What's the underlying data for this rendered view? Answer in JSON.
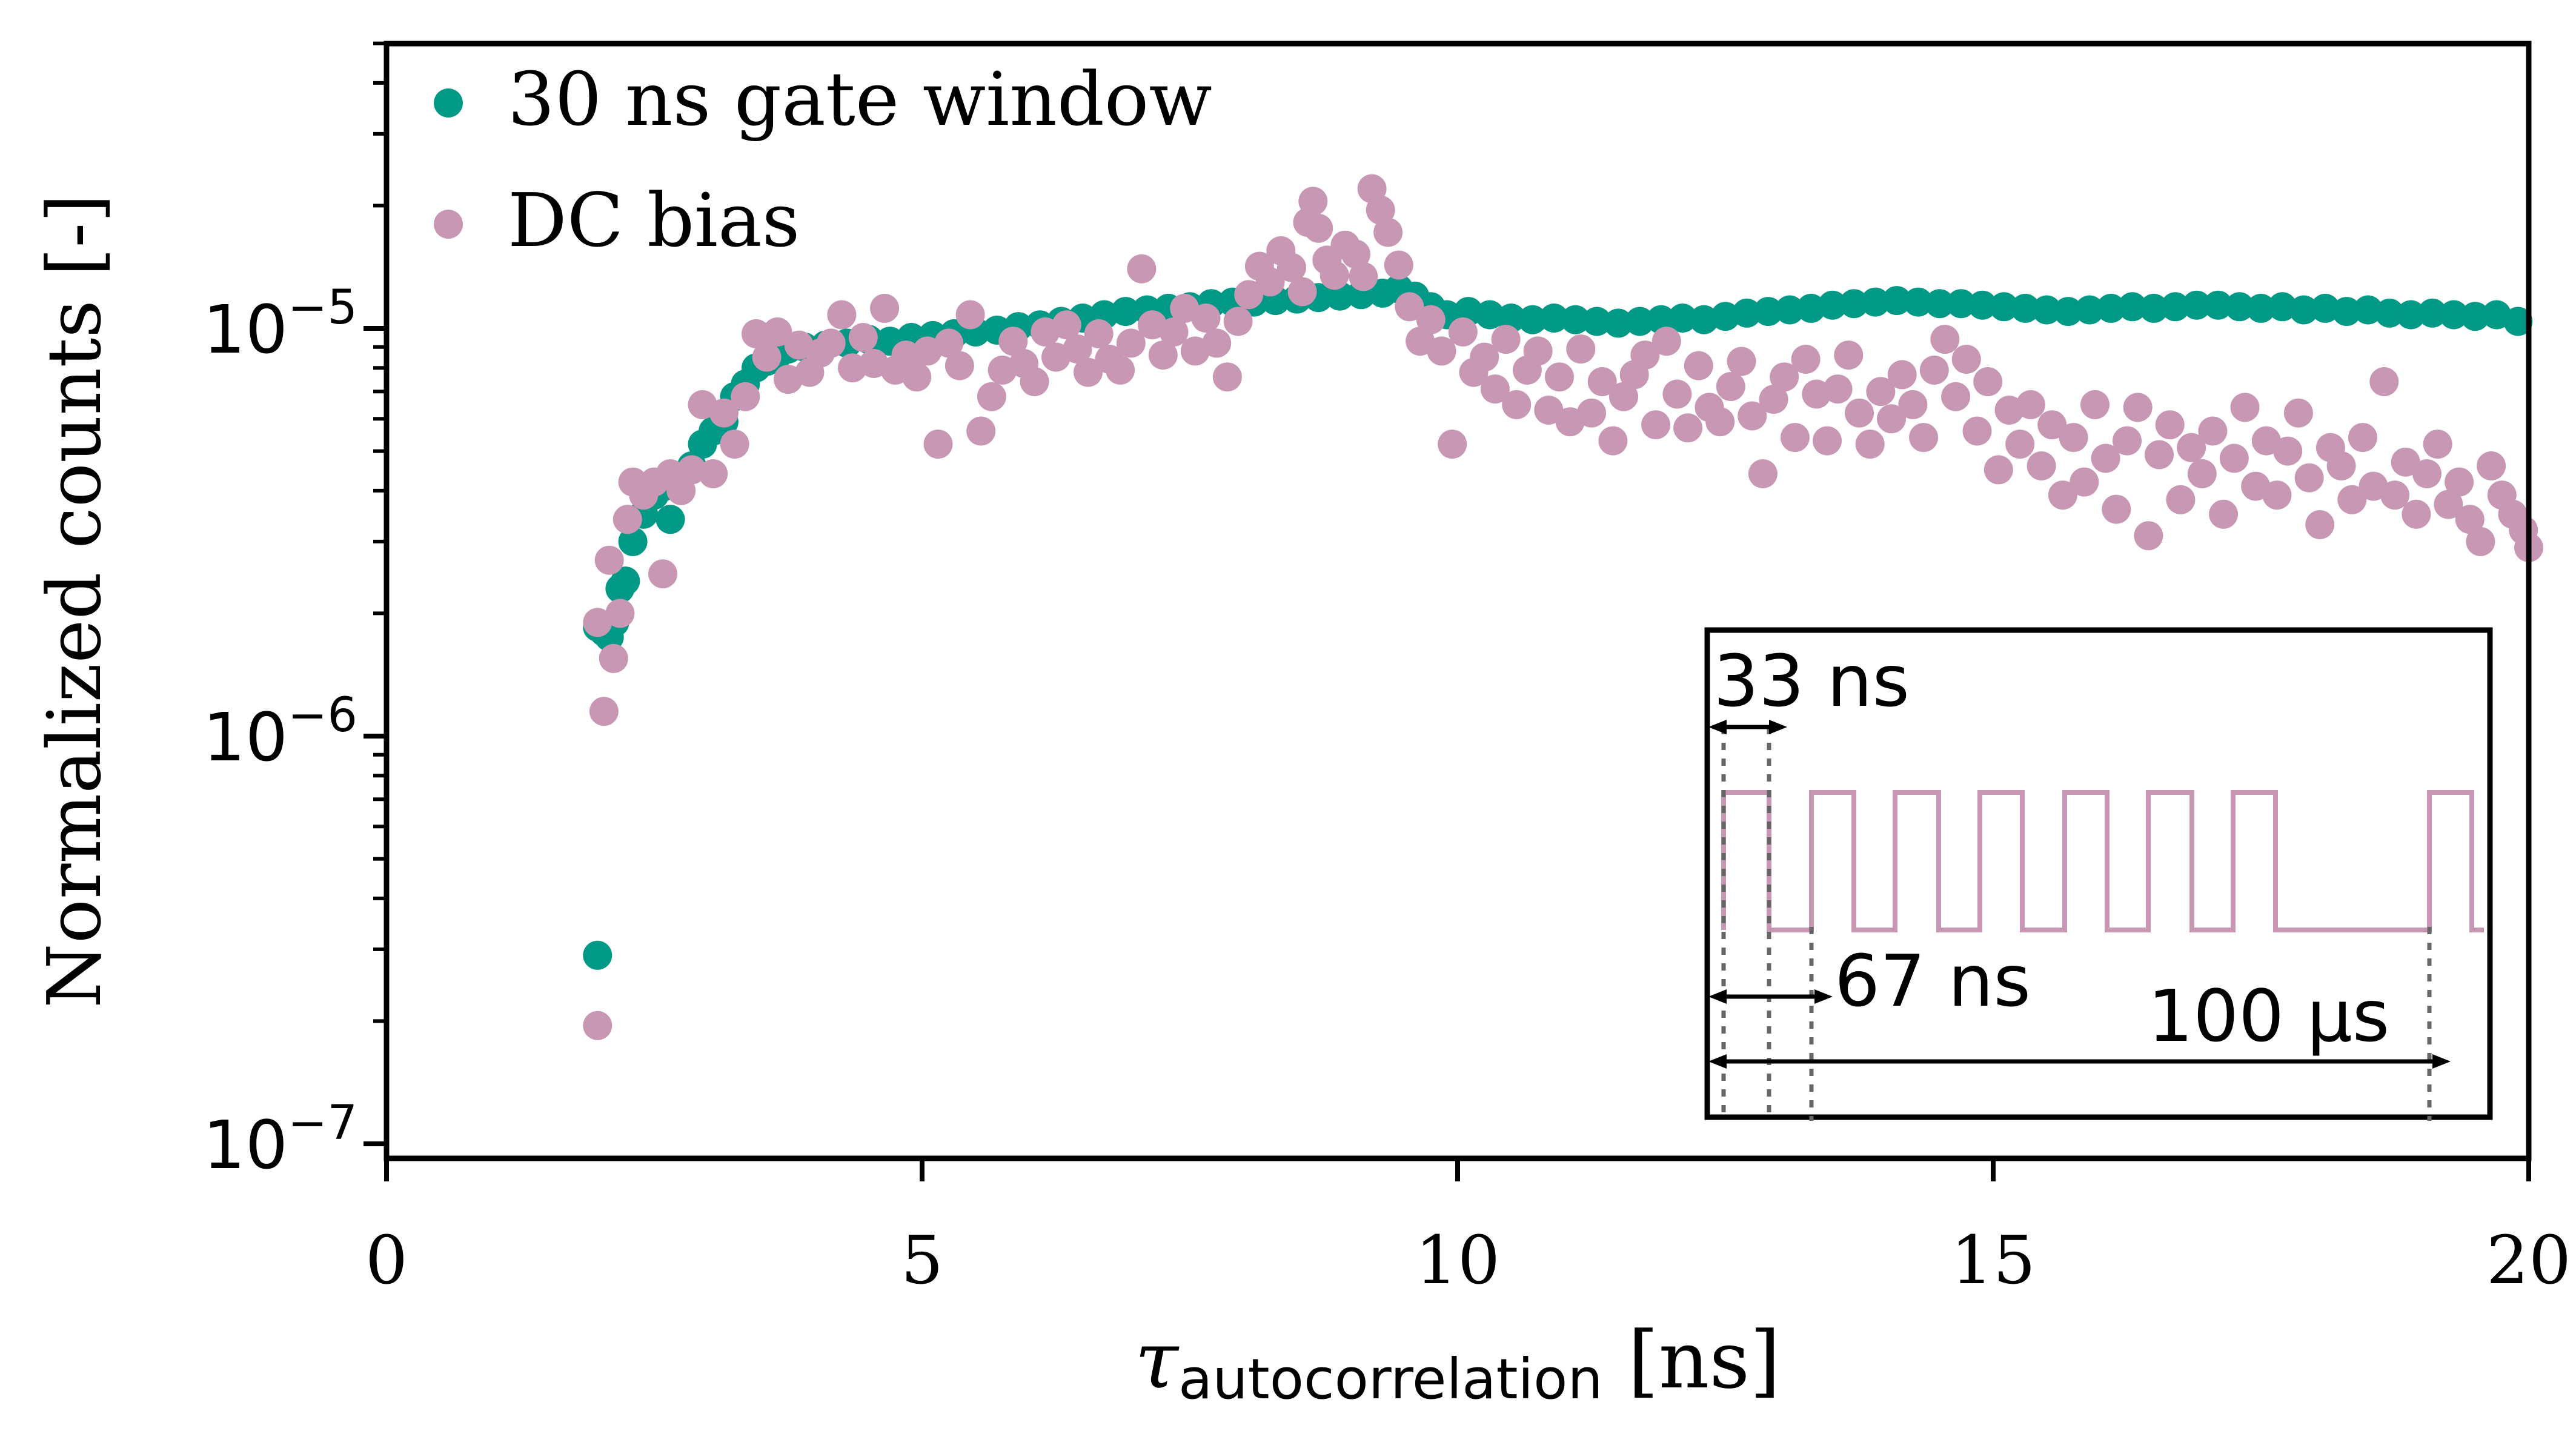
{
  "chart_data": {
    "type": "scatter",
    "title": "",
    "xlabel": {
      "symbol": "τ",
      "subscript": "autocorrelation",
      "unit": " [ns]"
    },
    "ylabel": "Normalized counts [-]",
    "xlim": [
      0,
      20
    ],
    "ylim": [
      1e-07,
      5e-05
    ],
    "yscale": "log",
    "xticks": [
      "0",
      "5",
      "10",
      "15",
      "20"
    ],
    "yticks": [
      {
        "base": "10",
        "exp": "−7",
        "value": 1e-07
      },
      {
        "base": "10",
        "exp": "−6",
        "value": 1e-06
      },
      {
        "base": "10",
        "exp": "−5",
        "value": 1e-05
      }
    ],
    "legend_position": "top-left",
    "series": [
      {
        "name": "30 ns gate window",
        "color": "#009985",
        "points": [
          [
            1.97,
            2.9e-07
          ],
          [
            1.97,
            1.85e-06
          ],
          [
            2.03,
            1.8e-06
          ],
          [
            2.08,
            1.75e-06
          ],
          [
            2.13,
            1.9e-06
          ],
          [
            2.18,
            2.3e-06
          ],
          [
            2.23,
            2.4e-06
          ],
          [
            2.3,
            3e-06
          ],
          [
            2.4,
            3.5e-06
          ],
          [
            2.5,
            3.9e-06
          ],
          [
            2.6,
            4.1e-06
          ],
          [
            2.65,
            3.4e-06
          ],
          [
            2.75,
            4.3e-06
          ],
          [
            2.85,
            4.6e-06
          ],
          [
            2.95,
            5.2e-06
          ],
          [
            3.05,
            5.6e-06
          ],
          [
            3.15,
            5.9e-06
          ],
          [
            3.25,
            6.8e-06
          ],
          [
            3.35,
            7.3e-06
          ],
          [
            3.45,
            8e-06
          ],
          [
            3.55,
            8.3e-06
          ],
          [
            3.65,
            8.6e-06
          ],
          [
            3.75,
            8.9e-06
          ],
          [
            3.9,
            9e-06
          ],
          [
            4.1,
            9.1e-06
          ],
          [
            4.3,
            9.2e-06
          ],
          [
            4.5,
            9.4e-06
          ],
          [
            4.7,
            9.3e-06
          ],
          [
            4.9,
            9.5e-06
          ],
          [
            5.1,
            9.6e-06
          ],
          [
            5.3,
            9.7e-06
          ],
          [
            5.5,
            9.8e-06
          ],
          [
            5.7,
            9.9e-06
          ],
          [
            5.9,
            1.01e-05
          ],
          [
            6.1,
            1.02e-05
          ],
          [
            6.3,
            1.04e-05
          ],
          [
            6.5,
            1.06e-05
          ],
          [
            6.7,
            1.08e-05
          ],
          [
            6.9,
            1.1e-05
          ],
          [
            7.1,
            1.11e-05
          ],
          [
            7.3,
            1.12e-05
          ],
          [
            7.5,
            1.13e-05
          ],
          [
            7.7,
            1.15e-05
          ],
          [
            7.9,
            1.16e-05
          ],
          [
            8.1,
            1.16e-05
          ],
          [
            8.3,
            1.17e-05
          ],
          [
            8.5,
            1.18e-05
          ],
          [
            8.7,
            1.19e-05
          ],
          [
            8.9,
            1.2e-05
          ],
          [
            9.1,
            1.21e-05
          ],
          [
            9.3,
            1.22e-05
          ],
          [
            9.45,
            1.25e-05
          ],
          [
            9.6,
            1.2e-05
          ],
          [
            9.75,
            1.13e-05
          ],
          [
            9.9,
            1.08e-05
          ],
          [
            10.1,
            1.1e-05
          ],
          [
            10.3,
            1.08e-05
          ],
          [
            10.5,
            1.06e-05
          ],
          [
            10.7,
            1.05e-05
          ],
          [
            10.9,
            1.06e-05
          ],
          [
            11.1,
            1.05e-05
          ],
          [
            11.3,
            1.04e-05
          ],
          [
            11.5,
            1.03e-05
          ],
          [
            11.7,
            1.04e-05
          ],
          [
            11.9,
            1.05e-05
          ],
          [
            12.1,
            1.06e-05
          ],
          [
            12.3,
            1.05e-05
          ],
          [
            12.5,
            1.07e-05
          ],
          [
            12.7,
            1.09e-05
          ],
          [
            12.9,
            1.1e-05
          ],
          [
            13.1,
            1.11e-05
          ],
          [
            13.3,
            1.12e-05
          ],
          [
            13.5,
            1.14e-05
          ],
          [
            13.7,
            1.15e-05
          ],
          [
            13.9,
            1.16e-05
          ],
          [
            14.1,
            1.17e-05
          ],
          [
            14.3,
            1.16e-05
          ],
          [
            14.5,
            1.15e-05
          ],
          [
            14.7,
            1.15e-05
          ],
          [
            14.9,
            1.14e-05
          ],
          [
            15.1,
            1.13e-05
          ],
          [
            15.3,
            1.12e-05
          ],
          [
            15.5,
            1.11e-05
          ],
          [
            15.7,
            1.1e-05
          ],
          [
            15.9,
            1.11e-05
          ],
          [
            16.1,
            1.12e-05
          ],
          [
            16.3,
            1.13e-05
          ],
          [
            16.5,
            1.12e-05
          ],
          [
            16.7,
            1.13e-05
          ],
          [
            16.9,
            1.14e-05
          ],
          [
            17.1,
            1.14e-05
          ],
          [
            17.3,
            1.13e-05
          ],
          [
            17.5,
            1.12e-05
          ],
          [
            17.7,
            1.13e-05
          ],
          [
            17.9,
            1.11e-05
          ],
          [
            18.1,
            1.12e-05
          ],
          [
            18.3,
            1.1e-05
          ],
          [
            18.5,
            1.11e-05
          ],
          [
            18.7,
            1.09e-05
          ],
          [
            18.9,
            1.08e-05
          ],
          [
            19.1,
            1.09e-05
          ],
          [
            19.3,
            1.08e-05
          ],
          [
            19.5,
            1.07e-05
          ],
          [
            19.7,
            1.08e-05
          ],
          [
            19.9,
            1.04e-05
          ]
        ]
      },
      {
        "name": "DC bias",
        "color": "#c897b3",
        "points": [
          [
            1.97,
            1.95e-07
          ],
          [
            1.97,
            1.9e-06
          ],
          [
            2.03,
            1.15e-06
          ],
          [
            2.08,
            2.7e-06
          ],
          [
            2.12,
            1.55e-06
          ],
          [
            2.18,
            2e-06
          ],
          [
            2.25,
            3.4e-06
          ],
          [
            2.3,
            4.2e-06
          ],
          [
            2.4,
            3.9e-06
          ],
          [
            2.5,
            4.2e-06
          ],
          [
            2.58,
            2.5e-06
          ],
          [
            2.65,
            4.4e-06
          ],
          [
            2.75,
            4e-06
          ],
          [
            2.85,
            4.5e-06
          ],
          [
            2.95,
            6.5e-06
          ],
          [
            3.05,
            4.4e-06
          ],
          [
            3.15,
            6.2e-06
          ],
          [
            3.25,
            5.2e-06
          ],
          [
            3.35,
            6.8e-06
          ],
          [
            3.45,
            9.7e-06
          ],
          [
            3.55,
            8.5e-06
          ],
          [
            3.65,
            9.8e-06
          ],
          [
            3.75,
            7.5e-06
          ],
          [
            3.85,
            9.1e-06
          ],
          [
            3.95,
            7.8e-06
          ],
          [
            4.05,
            8.7e-06
          ],
          [
            4.15,
            9.2e-06
          ],
          [
            4.25,
            1.08e-05
          ],
          [
            4.35,
            8e-06
          ],
          [
            4.45,
            9.5e-06
          ],
          [
            4.55,
            8.2e-06
          ],
          [
            4.65,
            1.12e-05
          ],
          [
            4.75,
            7.9e-06
          ],
          [
            4.85,
            8.6e-06
          ],
          [
            4.95,
            7.6e-06
          ],
          [
            5.05,
            8.8e-06
          ],
          [
            5.15,
            5.2e-06
          ],
          [
            5.25,
            9.2e-06
          ],
          [
            5.35,
            8.1e-06
          ],
          [
            5.45,
            1.08e-05
          ],
          [
            5.55,
            5.6e-06
          ],
          [
            5.65,
            6.8e-06
          ],
          [
            5.75,
            7.9e-06
          ],
          [
            5.85,
            9.3e-06
          ],
          [
            5.95,
            8.2e-06
          ],
          [
            6.05,
            7.4e-06
          ],
          [
            6.15,
            9.8e-06
          ],
          [
            6.25,
            8.5e-06
          ],
          [
            6.35,
            1.02e-05
          ],
          [
            6.45,
            8.9e-06
          ],
          [
            6.55,
            7.8e-06
          ],
          [
            6.65,
            9.7e-06
          ],
          [
            6.75,
            8.4e-06
          ],
          [
            6.85,
            7.9e-06
          ],
          [
            6.95,
            9.2e-06
          ],
          [
            7.05,
            1.4e-05
          ],
          [
            7.15,
            1.02e-05
          ],
          [
            7.25,
            8.6e-06
          ],
          [
            7.35,
            9.8e-06
          ],
          [
            7.45,
            1.12e-05
          ],
          [
            7.55,
            8.8e-06
          ],
          [
            7.65,
            1.06e-05
          ],
          [
            7.75,
            9.2e-06
          ],
          [
            7.85,
            7.6e-06
          ],
          [
            7.95,
            1.04e-05
          ],
          [
            8.05,
            1.21e-05
          ],
          [
            8.15,
            1.42e-05
          ],
          [
            8.25,
            1.3e-05
          ],
          [
            8.35,
            1.55e-05
          ],
          [
            8.45,
            1.41e-05
          ],
          [
            8.55,
            1.23e-05
          ],
          [
            8.6,
            1.82e-05
          ],
          [
            8.65,
            2.05e-05
          ],
          [
            8.7,
            1.76e-05
          ],
          [
            8.78,
            1.47e-05
          ],
          [
            8.85,
            1.35e-05
          ],
          [
            8.95,
            1.6e-05
          ],
          [
            9.05,
            1.52e-05
          ],
          [
            9.12,
            1.34e-05
          ],
          [
            9.2,
            2.2e-05
          ],
          [
            9.28,
            1.95e-05
          ],
          [
            9.35,
            1.72e-05
          ],
          [
            9.45,
            1.43e-05
          ],
          [
            9.55,
            1.13e-05
          ],
          [
            9.65,
            9.3e-06
          ],
          [
            9.75,
            1.05e-05
          ],
          [
            9.85,
            8.8e-06
          ],
          [
            9.95,
            5.2e-06
          ],
          [
            10.05,
            9.8e-06
          ],
          [
            10.15,
            7.8e-06
          ],
          [
            10.25,
            8.5e-06
          ],
          [
            10.35,
            7.1e-06
          ],
          [
            10.45,
            9.4e-06
          ],
          [
            10.55,
            6.5e-06
          ],
          [
            10.65,
            7.9e-06
          ],
          [
            10.75,
            8.8e-06
          ],
          [
            10.85,
            6.3e-06
          ],
          [
            10.95,
            7.6e-06
          ],
          [
            11.05,
            5.9e-06
          ],
          [
            11.15,
            8.9e-06
          ],
          [
            11.25,
            6.2e-06
          ],
          [
            11.35,
            7.4e-06
          ],
          [
            11.45,
            5.3e-06
          ],
          [
            11.55,
            6.8e-06
          ],
          [
            11.65,
            7.7e-06
          ],
          [
            11.75,
            8.6e-06
          ],
          [
            11.85,
            5.8e-06
          ],
          [
            11.95,
            9.3e-06
          ],
          [
            12.05,
            6.9e-06
          ],
          [
            12.15,
            5.7e-06
          ],
          [
            12.25,
            8.1e-06
          ],
          [
            12.35,
            6.4e-06
          ],
          [
            12.45,
            5.9e-06
          ],
          [
            12.55,
            7.2e-06
          ],
          [
            12.65,
            8.3e-06
          ],
          [
            12.75,
            6.1e-06
          ],
          [
            12.85,
            4.4e-06
          ],
          [
            12.95,
            6.7e-06
          ],
          [
            13.05,
            7.6e-06
          ],
          [
            13.15,
            5.4e-06
          ],
          [
            13.25,
            8.4e-06
          ],
          [
            13.35,
            6.9e-06
          ],
          [
            13.45,
            5.3e-06
          ],
          [
            13.55,
            7.1e-06
          ],
          [
            13.65,
            8.6e-06
          ],
          [
            13.75,
            6.2e-06
          ],
          [
            13.85,
            5.2e-06
          ],
          [
            13.95,
            7e-06
          ],
          [
            14.05,
            6e-06
          ],
          [
            14.15,
            7.7e-06
          ],
          [
            14.25,
            6.5e-06
          ],
          [
            14.35,
            5.4e-06
          ],
          [
            14.45,
            7.9e-06
          ],
          [
            14.55,
            9.4e-06
          ],
          [
            14.65,
            6.8e-06
          ],
          [
            14.75,
            8.4e-06
          ],
          [
            14.85,
            5.6e-06
          ],
          [
            14.95,
            7.4e-06
          ],
          [
            15.05,
            4.5e-06
          ],
          [
            15.15,
            6.3e-06
          ],
          [
            15.25,
            5.2e-06
          ],
          [
            15.35,
            6.5e-06
          ],
          [
            15.45,
            4.6e-06
          ],
          [
            15.55,
            5.8e-06
          ],
          [
            15.65,
            3.9e-06
          ],
          [
            15.75,
            5.4e-06
          ],
          [
            15.85,
            4.2e-06
          ],
          [
            15.95,
            6.5e-06
          ],
          [
            16.05,
            4.8e-06
          ],
          [
            16.15,
            3.6e-06
          ],
          [
            16.25,
            5.3e-06
          ],
          [
            16.35,
            6.4e-06
          ],
          [
            16.45,
            3.1e-06
          ],
          [
            16.55,
            4.9e-06
          ],
          [
            16.65,
            5.8e-06
          ],
          [
            16.75,
            3.8e-06
          ],
          [
            16.85,
            5.1e-06
          ],
          [
            16.95,
            4.4e-06
          ],
          [
            17.05,
            5.6e-06
          ],
          [
            17.15,
            3.5e-06
          ],
          [
            17.25,
            4.8e-06
          ],
          [
            17.35,
            6.4e-06
          ],
          [
            17.45,
            4.1e-06
          ],
          [
            17.55,
            5.3e-06
          ],
          [
            17.65,
            3.9e-06
          ],
          [
            17.75,
            5e-06
          ],
          [
            17.85,
            6.2e-06
          ],
          [
            17.95,
            4.3e-06
          ],
          [
            18.05,
            3.3e-06
          ],
          [
            18.15,
            5.1e-06
          ],
          [
            18.25,
            4.6e-06
          ],
          [
            18.35,
            3.8e-06
          ],
          [
            18.45,
            5.4e-06
          ],
          [
            18.55,
            4.1e-06
          ],
          [
            18.65,
            7.4e-06
          ],
          [
            18.75,
            3.9e-06
          ],
          [
            18.85,
            4.7e-06
          ],
          [
            18.95,
            3.5e-06
          ],
          [
            19.05,
            4.4e-06
          ],
          [
            19.15,
            5.2e-06
          ],
          [
            19.25,
            3.7e-06
          ],
          [
            19.35,
            4.2e-06
          ],
          [
            19.45,
            3.4e-06
          ],
          [
            19.55,
            3e-06
          ],
          [
            19.65,
            4.6e-06
          ],
          [
            19.75,
            3.9e-06
          ],
          [
            19.85,
            3.5e-06
          ],
          [
            19.95,
            3.2e-06
          ],
          [
            20.0,
            2.9e-06
          ]
        ]
      }
    ],
    "inset": {
      "annotations": [
        "33 ns",
        "67 ns",
        "100 µs"
      ]
    }
  }
}
